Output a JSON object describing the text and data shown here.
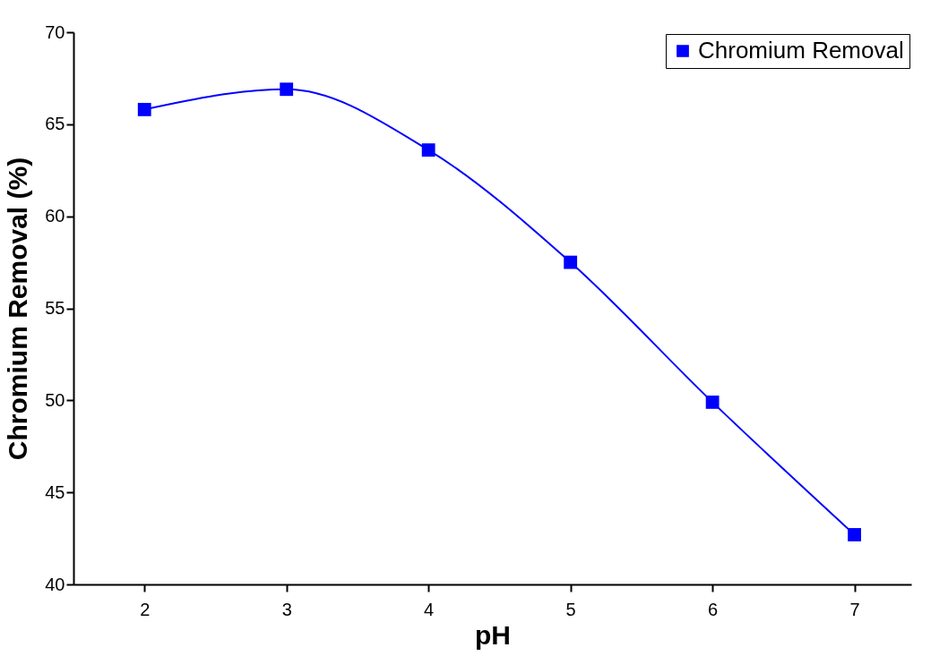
{
  "chart_data": {
    "type": "line",
    "xlabel": "pH",
    "ylabel": "Chromium Removal (%)",
    "x": [
      2,
      3,
      4,
      5,
      6,
      7
    ],
    "series": [
      {
        "name": "Chromium Removal",
        "color": "#0000ff",
        "values": [
          65.8,
          66.9,
          63.6,
          57.5,
          49.9,
          42.7
        ]
      }
    ],
    "xlim": [
      1.5,
      7.4
    ],
    "xticks": [
      2,
      3,
      4,
      5,
      6,
      7
    ],
    "ylim": [
      40,
      70
    ],
    "yticks": [
      40,
      45,
      50,
      55,
      60,
      65,
      70
    ],
    "grid": false,
    "legend": "top right",
    "marker": "square",
    "line_style": "solid"
  }
}
